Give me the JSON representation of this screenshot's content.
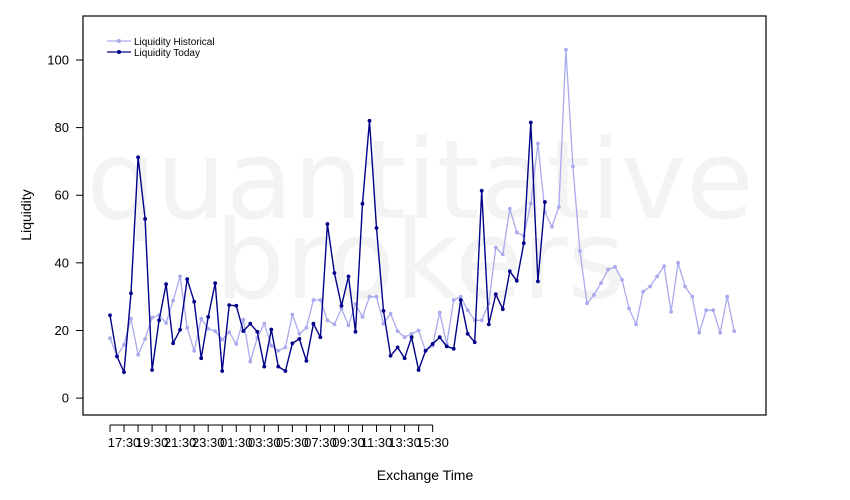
{
  "chart_data": {
    "type": "line",
    "xlabel": "Exchange Time",
    "ylabel": "Liquidity",
    "ylim": [
      -5,
      113
    ],
    "yticks": [
      0,
      20,
      40,
      60,
      80,
      100
    ],
    "xtick_labels": [
      "17:30",
      "19:30",
      "21:30",
      "23:30",
      "01:30",
      "03:30",
      "05:30",
      "07:30",
      "09:30",
      "11:30",
      "13:30",
      "15:30"
    ],
    "x_interval_minutes": 15,
    "x_start_time": "17:00",
    "watermark": [
      "quantitative",
      "brokers"
    ],
    "legend": {
      "placement": "top-left"
    },
    "series": [
      {
        "name": "Liquidity Historical",
        "color": "#aaaaee",
        "values": [
          17.7,
          12.5,
          15.8,
          23.5,
          12.8,
          17.5,
          23.8,
          24.5,
          22.2,
          28.8,
          36.0,
          20.8,
          14.0,
          23.5,
          20.5,
          19.8,
          17.3,
          19.5,
          16.0,
          23.2,
          10.8,
          17.8,
          22.0,
          15.5,
          14.0,
          15.0,
          24.7,
          19.0,
          20.8,
          29.0,
          29.0,
          23.0,
          21.8,
          26.5,
          21.5,
          27.8,
          24.0,
          30.0,
          30.0,
          22.0,
          25.0,
          19.8,
          18.0,
          19.0,
          20.0,
          14.0,
          15.5,
          25.3,
          16.0,
          29.0,
          30.0,
          26.0,
          23.0,
          23.0,
          28.0,
          44.5,
          42.5,
          56.0,
          49.0,
          48.0,
          57.5,
          75.3,
          55.0,
          50.7,
          56.5,
          103.0,
          68.5,
          43.5,
          28.0,
          30.5,
          34.0,
          38.0,
          38.8,
          35.0,
          26.5,
          21.8,
          31.5,
          33.0,
          36.0,
          39.0,
          25.5,
          40.0,
          33.0,
          30.0,
          19.3,
          26.0,
          26.0,
          19.3,
          30.0,
          19.8
        ]
      },
      {
        "name": "Liquidity Today",
        "color": "#000088",
        "values": [
          24.5,
          12.3,
          7.7,
          31.0,
          71.2,
          53.0,
          8.3,
          23.0,
          33.7,
          16.2,
          20.2,
          35.2,
          28.5,
          11.8,
          24.0,
          34.0,
          8.0,
          27.5,
          27.3,
          19.8,
          22.0,
          19.6,
          9.3,
          20.3,
          9.3,
          8.0,
          16.2,
          17.5,
          11.0,
          22.0,
          18.0,
          51.5,
          37.0,
          27.3,
          36.0,
          19.6,
          57.5,
          82.0,
          50.3,
          25.8,
          12.5,
          15.0,
          11.8,
          18.0,
          8.3,
          14.0,
          16.0,
          18.0,
          15.3,
          14.6,
          29.0,
          19.0,
          16.5,
          61.3,
          21.8,
          30.7,
          26.3,
          37.5,
          34.7,
          45.8,
          81.5,
          34.5,
          58.0
        ]
      }
    ]
  }
}
